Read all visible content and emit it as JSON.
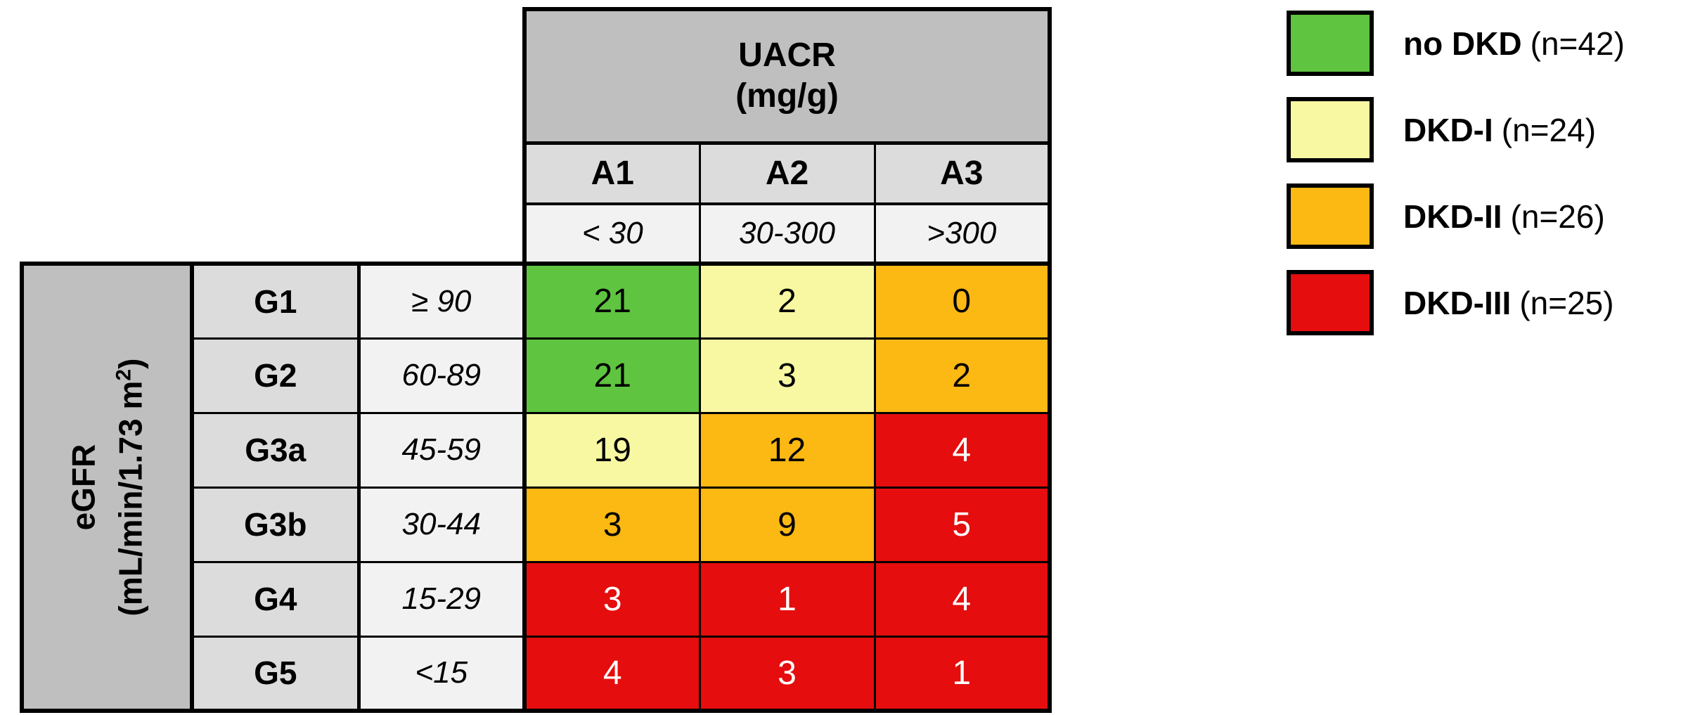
{
  "colors": {
    "green": "#5fc440",
    "yellow": "#f8f8a2",
    "orange": "#fcb813",
    "red": "#e50d0d",
    "header_gray": "#bfbfbf",
    "subheader_gray": "#dcdcdc",
    "range_gray": "#f2f2f2",
    "border_black": "#000000"
  },
  "table": {
    "col_header": {
      "title_line1": "UACR",
      "title_line2": "(mg/g)",
      "categories": [
        "A1",
        "A2",
        "A3"
      ],
      "ranges": [
        "< 30",
        "30-300",
        ">300"
      ]
    },
    "row_header": {
      "line1": "eGFR",
      "line2_pre": "(mL/min/1.73 m",
      "line2_sup": "2",
      "line2_post": ")"
    },
    "rows": [
      {
        "grade": "G1",
        "range": "≥ 90",
        "cells": [
          {
            "value": "21",
            "color": "green"
          },
          {
            "value": "2",
            "color": "yellow"
          },
          {
            "value": "0",
            "color": "orange"
          }
        ]
      },
      {
        "grade": "G2",
        "range": "60-89",
        "cells": [
          {
            "value": "21",
            "color": "green"
          },
          {
            "value": "3",
            "color": "yellow"
          },
          {
            "value": "2",
            "color": "orange"
          }
        ]
      },
      {
        "grade": "G3a",
        "range": "45-59",
        "cells": [
          {
            "value": "19",
            "color": "yellow"
          },
          {
            "value": "12",
            "color": "orange"
          },
          {
            "value": "4",
            "color": "red"
          }
        ]
      },
      {
        "grade": "G3b",
        "range": "30-44",
        "cells": [
          {
            "value": "3",
            "color": "orange"
          },
          {
            "value": "9",
            "color": "orange"
          },
          {
            "value": "5",
            "color": "red"
          }
        ]
      },
      {
        "grade": "G4",
        "range": "15-29",
        "cells": [
          {
            "value": "3",
            "color": "red"
          },
          {
            "value": "1",
            "color": "red"
          },
          {
            "value": "4",
            "color": "red"
          }
        ]
      },
      {
        "grade": "G5",
        "range": "<15",
        "cells": [
          {
            "value": "4",
            "color": "red"
          },
          {
            "value": "3",
            "color": "red"
          },
          {
            "value": "1",
            "color": "red"
          }
        ]
      }
    ]
  },
  "legend": {
    "items": [
      {
        "label": "no DKD",
        "count": "(n=42)",
        "color": "green"
      },
      {
        "label": "DKD-I",
        "count": "(n=24)",
        "color": "yellow"
      },
      {
        "label": "DKD-II",
        "count": "(n=26)",
        "color": "orange"
      },
      {
        "label": "DKD-III",
        "count": "(n=25)",
        "color": "red"
      }
    ]
  },
  "chart_data": {
    "type": "heatmap",
    "xlabel": "UACR (mg/g)",
    "ylabel": "eGFR (mL/min/1.73 m2)",
    "x_categories": [
      "A1",
      "A2",
      "A3"
    ],
    "x_category_ranges": [
      "< 30",
      "30-300",
      ">300"
    ],
    "y_categories": [
      "G1",
      "G2",
      "G3a",
      "G3b",
      "G4",
      "G5"
    ],
    "y_category_ranges": [
      "≥ 90",
      "60-89",
      "45-59",
      "30-44",
      "15-29",
      "<15"
    ],
    "values": [
      [
        21,
        2,
        0
      ],
      [
        21,
        3,
        2
      ],
      [
        19,
        12,
        4
      ],
      [
        3,
        9,
        5
      ],
      [
        3,
        1,
        4
      ],
      [
        4,
        3,
        1
      ]
    ],
    "cell_classes": [
      [
        "no DKD",
        "DKD-I",
        "DKD-II"
      ],
      [
        "no DKD",
        "DKD-I",
        "DKD-II"
      ],
      [
        "DKD-I",
        "DKD-II",
        "DKD-III"
      ],
      [
        "DKD-II",
        "DKD-II",
        "DKD-III"
      ],
      [
        "DKD-III",
        "DKD-III",
        "DKD-III"
      ],
      [
        "DKD-III",
        "DKD-III",
        "DKD-III"
      ]
    ],
    "legend": [
      {
        "label": "no DKD",
        "n": 42,
        "color": "#5fc440"
      },
      {
        "label": "DKD-I",
        "n": 24,
        "color": "#f8f8a2"
      },
      {
        "label": "DKD-II",
        "n": 26,
        "color": "#fcb813"
      },
      {
        "label": "DKD-III",
        "n": 25,
        "color": "#e50d0d"
      }
    ],
    "legend_position": "right",
    "grid": true
  }
}
